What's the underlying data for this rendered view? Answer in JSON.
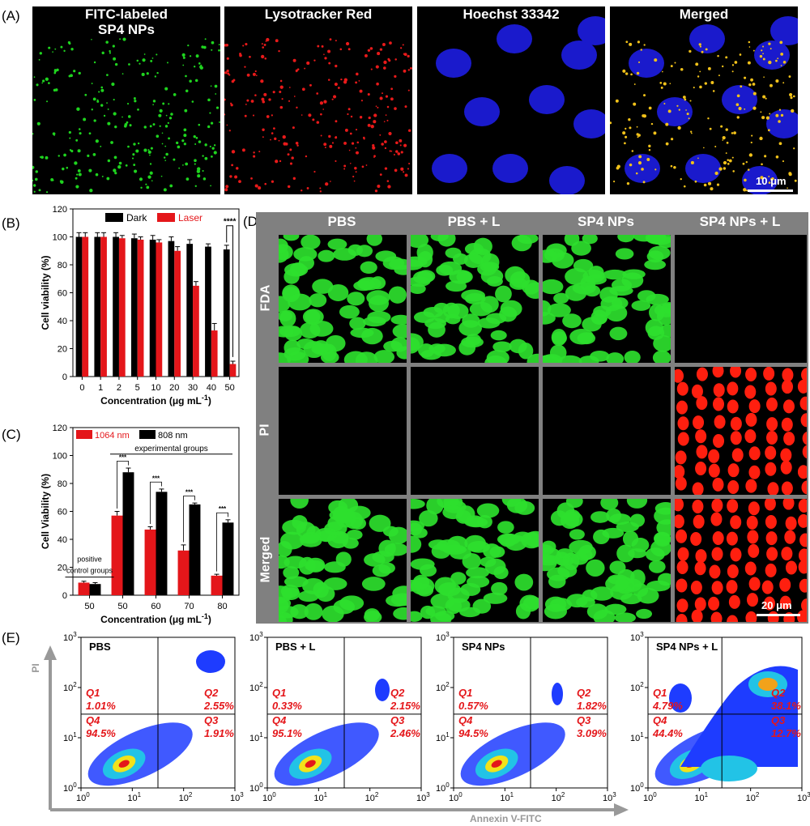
{
  "panel_labels": {
    "A": "(A)",
    "B": "(B)",
    "C": "(C)",
    "D": "(D)",
    "E": "(E)"
  },
  "panel_a": {
    "titles": [
      [
        "FITC-labeled",
        "SP4 NPs"
      ],
      [
        "Lysotracker Red"
      ],
      [
        "Hoechst 33342"
      ],
      [
        "Merged"
      ]
    ],
    "scale_bar": "10 μm"
  },
  "chart_data": [
    {
      "type": "bar",
      "id": "B",
      "categories": [
        "0",
        "1",
        "2",
        "5",
        "10",
        "20",
        "30",
        "40",
        "50"
      ],
      "series": [
        {
          "name": "Dark",
          "color": "#000000",
          "values": [
            100,
            100,
            100,
            99,
            98,
            97,
            95,
            93,
            91
          ],
          "errors": [
            3,
            3,
            3,
            3,
            3,
            3,
            3,
            2,
            3
          ]
        },
        {
          "name": "Laser",
          "color": "#e4161a",
          "values": [
            100,
            100,
            99,
            98,
            96,
            90,
            65,
            33,
            9
          ],
          "errors": [
            3,
            3,
            2,
            2,
            2,
            3,
            3,
            5,
            2
          ]
        }
      ],
      "xlabel": "Concentration (μg mL",
      "xlabel_sup": "-1",
      "xlabel_end": ")",
      "ylabel": "Cell viability (%)",
      "ylim": [
        0,
        120
      ],
      "yticks": [
        "0",
        "20",
        "40",
        "60",
        "80",
        "100",
        "120"
      ],
      "significance": "****",
      "legend": "top"
    },
    {
      "type": "bar",
      "id": "C",
      "categories": [
        "50",
        "50",
        "60",
        "70",
        "80"
      ],
      "series": [
        {
          "name": "1064 nm",
          "color": "#e4161a",
          "values": [
            9,
            57,
            47,
            32,
            14
          ],
          "errors": [
            1,
            3,
            2,
            4,
            1
          ]
        },
        {
          "name": "808 nm",
          "color": "#000000",
          "values": [
            8,
            88,
            74,
            65,
            52
          ],
          "errors": [
            1,
            3,
            2,
            1,
            2
          ]
        }
      ],
      "xlabel": "Concentration (μg mL",
      "xlabel_sup": "-1",
      "xlabel_end": ")",
      "ylabel": "Cell Viability (%)",
      "ylim": [
        0,
        120
      ],
      "yticks": [
        "0",
        "20",
        "40",
        "60",
        "80",
        "100",
        "120"
      ],
      "significance": "***",
      "annotations": {
        "positive": [
          "positive",
          "control groups"
        ],
        "experimental": "experimental groups"
      },
      "legend": "top-left"
    }
  ],
  "panel_d": {
    "columns": [
      "PBS",
      "PBS + L",
      "SP4 NPs",
      "SP4 NPs + L"
    ],
    "rows": [
      "FDA",
      "PI",
      "Merged"
    ],
    "scale_bar": "20 μm"
  },
  "panel_e": {
    "x_axis_label": "Annexin V-FITC",
    "y_axis_label": "PI",
    "tick_labels": [
      "10",
      "0",
      "10",
      "1",
      "10",
      "2",
      "10",
      "3"
    ],
    "plots": [
      {
        "title": "PBS",
        "Q1": "1.01%",
        "Q2": "2.55%",
        "Q3": "1.91%",
        "Q4": "94.5%"
      },
      {
        "title": "PBS + L",
        "Q1": "0.33%",
        "Q2": "2.15%",
        "Q3": "2.46%",
        "Q4": "95.1%"
      },
      {
        "title": "SP4 NPs",
        "Q1": "0.57%",
        "Q2": "1.82%",
        "Q3": "3.09%",
        "Q4": "94.5%"
      },
      {
        "title": "SP4 NPs + L",
        "Q1": "4.79%",
        "Q2": "38.1%",
        "Q3": "12.7%",
        "Q4": "44.4%"
      }
    ],
    "quadrant_names": [
      "Q1",
      "Q2",
      "Q3",
      "Q4"
    ]
  }
}
